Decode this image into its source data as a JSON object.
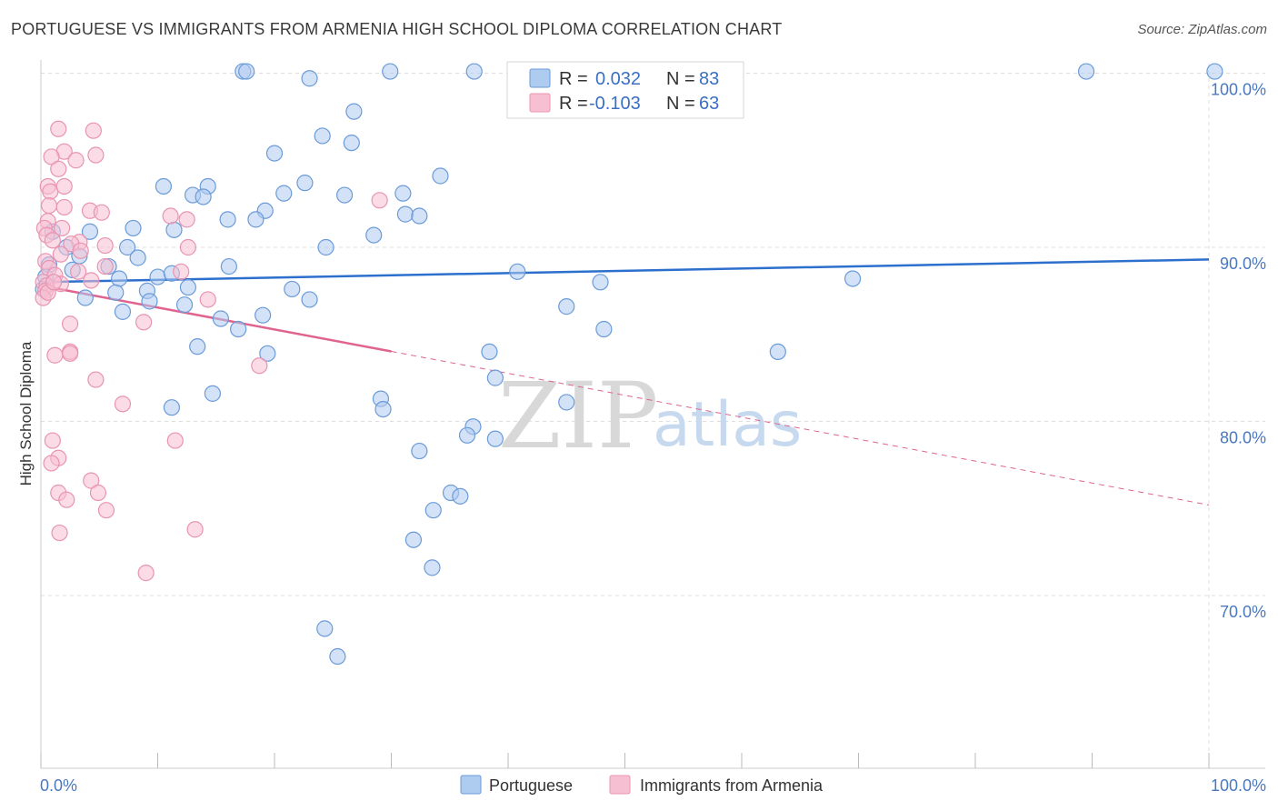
{
  "title": "PORTUGUESE VS IMMIGRANTS FROM ARMENIA HIGH SCHOOL DIPLOMA CORRELATION CHART",
  "source": "Source: ZipAtlas.com",
  "watermark": {
    "zip": "ZIP",
    "atlas": "atlas"
  },
  "legend": {
    "r_label": "R =",
    "n_label": "N =",
    "series1": {
      "r": "0.032",
      "n": "83"
    },
    "series2": {
      "r": "-0.103",
      "n": "63"
    }
  },
  "colors": {
    "blue_fill": "#aecbf0",
    "blue_stroke": "#6b9bd9",
    "blue_line": "#2d6fcc",
    "pink_fill": "#f7bfd2",
    "pink_stroke": "#e894b2",
    "pink_line": "#e0638f",
    "grid": "#dddddd",
    "axis_text": "#4a78c0"
  },
  "chart_data": {
    "type": "scatter",
    "title": "PORTUGUESE VS IMMIGRANTS FROM ARMENIA HIGH SCHOOL DIPLOMA CORRELATION CHART",
    "xlabel": "",
    "ylabel": "High School Diploma",
    "xlim": [
      0,
      100
    ],
    "ylim": [
      60,
      102
    ],
    "x_tick_labels": [
      "0.0%",
      "100.0%"
    ],
    "y_ticks": [
      70,
      80,
      90,
      100
    ],
    "y_tick_labels": [
      "70.0%",
      "80.0%",
      "90.0%",
      "100.0%"
    ],
    "legend_position": "bottom",
    "series": [
      {
        "name": "Portuguese",
        "color": "#aecbf0",
        "trend": {
          "x": [
            0,
            100
          ],
          "y": [
            88.0,
            89.3
          ],
          "dashed_from": null
        },
        "points": [
          [
            17.3,
            100.1
          ],
          [
            17.6,
            100.1
          ],
          [
            23.0,
            99.7
          ],
          [
            29.9,
            100.1
          ],
          [
            37.1,
            100.1
          ],
          [
            47.4,
            100.1
          ],
          [
            89.5,
            100.1
          ],
          [
            100.5,
            100.1
          ],
          [
            26.8,
            97.8
          ],
          [
            24.1,
            96.4
          ],
          [
            26.6,
            96.0
          ],
          [
            20.0,
            95.4
          ],
          [
            34.2,
            94.1
          ],
          [
            10.5,
            93.5
          ],
          [
            14.3,
            93.5
          ],
          [
            22.6,
            93.7
          ],
          [
            20.8,
            93.1
          ],
          [
            13.0,
            93.0
          ],
          [
            13.9,
            92.9
          ],
          [
            26.0,
            93.0
          ],
          [
            31.0,
            93.1
          ],
          [
            19.2,
            92.1
          ],
          [
            31.2,
            91.9
          ],
          [
            32.4,
            91.8
          ],
          [
            16.0,
            91.6
          ],
          [
            18.4,
            91.6
          ],
          [
            7.9,
            91.1
          ],
          [
            11.4,
            91.0
          ],
          [
            4.2,
            90.9
          ],
          [
            28.5,
            90.7
          ],
          [
            1.0,
            90.9
          ],
          [
            24.4,
            90.0
          ],
          [
            7.4,
            90.0
          ],
          [
            2.2,
            90.0
          ],
          [
            3.3,
            89.5
          ],
          [
            8.3,
            89.4
          ],
          [
            16.1,
            88.9
          ],
          [
            5.8,
            88.9
          ],
          [
            2.7,
            88.7
          ],
          [
            0.7,
            89.0
          ],
          [
            10.0,
            88.3
          ],
          [
            11.2,
            88.5
          ],
          [
            40.8,
            88.6
          ],
          [
            69.5,
            88.2
          ],
          [
            47.9,
            88.0
          ],
          [
            6.7,
            88.2
          ],
          [
            12.6,
            87.7
          ],
          [
            21.5,
            87.6
          ],
          [
            6.4,
            87.4
          ],
          [
            9.1,
            87.5
          ],
          [
            3.8,
            87.1
          ],
          [
            23.0,
            87.0
          ],
          [
            9.3,
            86.9
          ],
          [
            7.0,
            86.3
          ],
          [
            15.4,
            85.9
          ],
          [
            19.0,
            86.1
          ],
          [
            16.9,
            85.3
          ],
          [
            48.2,
            85.3
          ],
          [
            13.4,
            84.3
          ],
          [
            63.1,
            84.0
          ],
          [
            38.4,
            84.0
          ],
          [
            19.4,
            83.9
          ],
          [
            38.9,
            82.5
          ],
          [
            14.7,
            81.6
          ],
          [
            29.1,
            81.3
          ],
          [
            11.2,
            80.8
          ],
          [
            29.3,
            80.7
          ],
          [
            45.0,
            81.1
          ],
          [
            37.0,
            79.7
          ],
          [
            38.9,
            79.0
          ],
          [
            36.5,
            79.2
          ],
          [
            32.4,
            78.3
          ],
          [
            35.1,
            75.9
          ],
          [
            35.9,
            75.7
          ],
          [
            33.6,
            74.9
          ],
          [
            31.9,
            73.2
          ],
          [
            33.5,
            71.6
          ],
          [
            24.3,
            68.1
          ],
          [
            25.4,
            66.5
          ],
          [
            12.3,
            86.7
          ],
          [
            45.0,
            86.6
          ],
          [
            0.4,
            88.3
          ],
          [
            0.2,
            87.6
          ]
        ]
      },
      {
        "name": "Immigrants from Armenia",
        "color": "#f7bfd2",
        "trend": {
          "x": [
            0,
            100
          ],
          "y": [
            87.8,
            75.2
          ],
          "dashed_from": 30.0
        },
        "points": [
          [
            1.5,
            96.8
          ],
          [
            4.5,
            96.7
          ],
          [
            2.0,
            95.5
          ],
          [
            0.9,
            95.2
          ],
          [
            3.0,
            95.0
          ],
          [
            4.7,
            95.3
          ],
          [
            1.5,
            94.5
          ],
          [
            0.6,
            93.5
          ],
          [
            0.8,
            93.2
          ],
          [
            2.0,
            93.5
          ],
          [
            29.0,
            92.7
          ],
          [
            0.7,
            92.4
          ],
          [
            2.0,
            92.3
          ],
          [
            4.2,
            92.1
          ],
          [
            5.2,
            92.0
          ],
          [
            11.1,
            91.8
          ],
          [
            12.5,
            91.6
          ],
          [
            0.6,
            91.5
          ],
          [
            0.3,
            91.1
          ],
          [
            1.8,
            91.1
          ],
          [
            0.5,
            90.7
          ],
          [
            3.3,
            90.3
          ],
          [
            2.6,
            90.2
          ],
          [
            5.5,
            90.1
          ],
          [
            12.6,
            90.0
          ],
          [
            1.7,
            89.6
          ],
          [
            0.4,
            89.2
          ],
          [
            0.7,
            88.8
          ],
          [
            3.2,
            88.6
          ],
          [
            12.0,
            88.6
          ],
          [
            1.2,
            88.4
          ],
          [
            4.3,
            88.1
          ],
          [
            5.5,
            88.9
          ],
          [
            0.2,
            88.0
          ],
          [
            0.5,
            87.8
          ],
          [
            1.7,
            87.9
          ],
          [
            0.4,
            87.5
          ],
          [
            0.2,
            87.1
          ],
          [
            14.3,
            87.0
          ],
          [
            2.5,
            85.6
          ],
          [
            8.8,
            85.7
          ],
          [
            1.2,
            83.8
          ],
          [
            2.5,
            84.0
          ],
          [
            18.7,
            83.2
          ],
          [
            2.5,
            83.9
          ],
          [
            4.7,
            82.4
          ],
          [
            7.0,
            81.0
          ],
          [
            11.5,
            78.9
          ],
          [
            1.0,
            78.9
          ],
          [
            1.5,
            77.9
          ],
          [
            0.9,
            77.6
          ],
          [
            4.3,
            76.6
          ],
          [
            1.5,
            75.9
          ],
          [
            4.9,
            75.9
          ],
          [
            2.2,
            75.5
          ],
          [
            5.6,
            74.9
          ],
          [
            13.2,
            73.8
          ],
          [
            1.6,
            73.6
          ],
          [
            9.0,
            71.3
          ],
          [
            1.0,
            90.4
          ],
          [
            3.4,
            89.8
          ],
          [
            0.6,
            87.4
          ],
          [
            1.1,
            88.0
          ]
        ]
      }
    ]
  },
  "bottom_legend": {
    "series1": "Portuguese",
    "series2": "Immigrants from Armenia"
  }
}
